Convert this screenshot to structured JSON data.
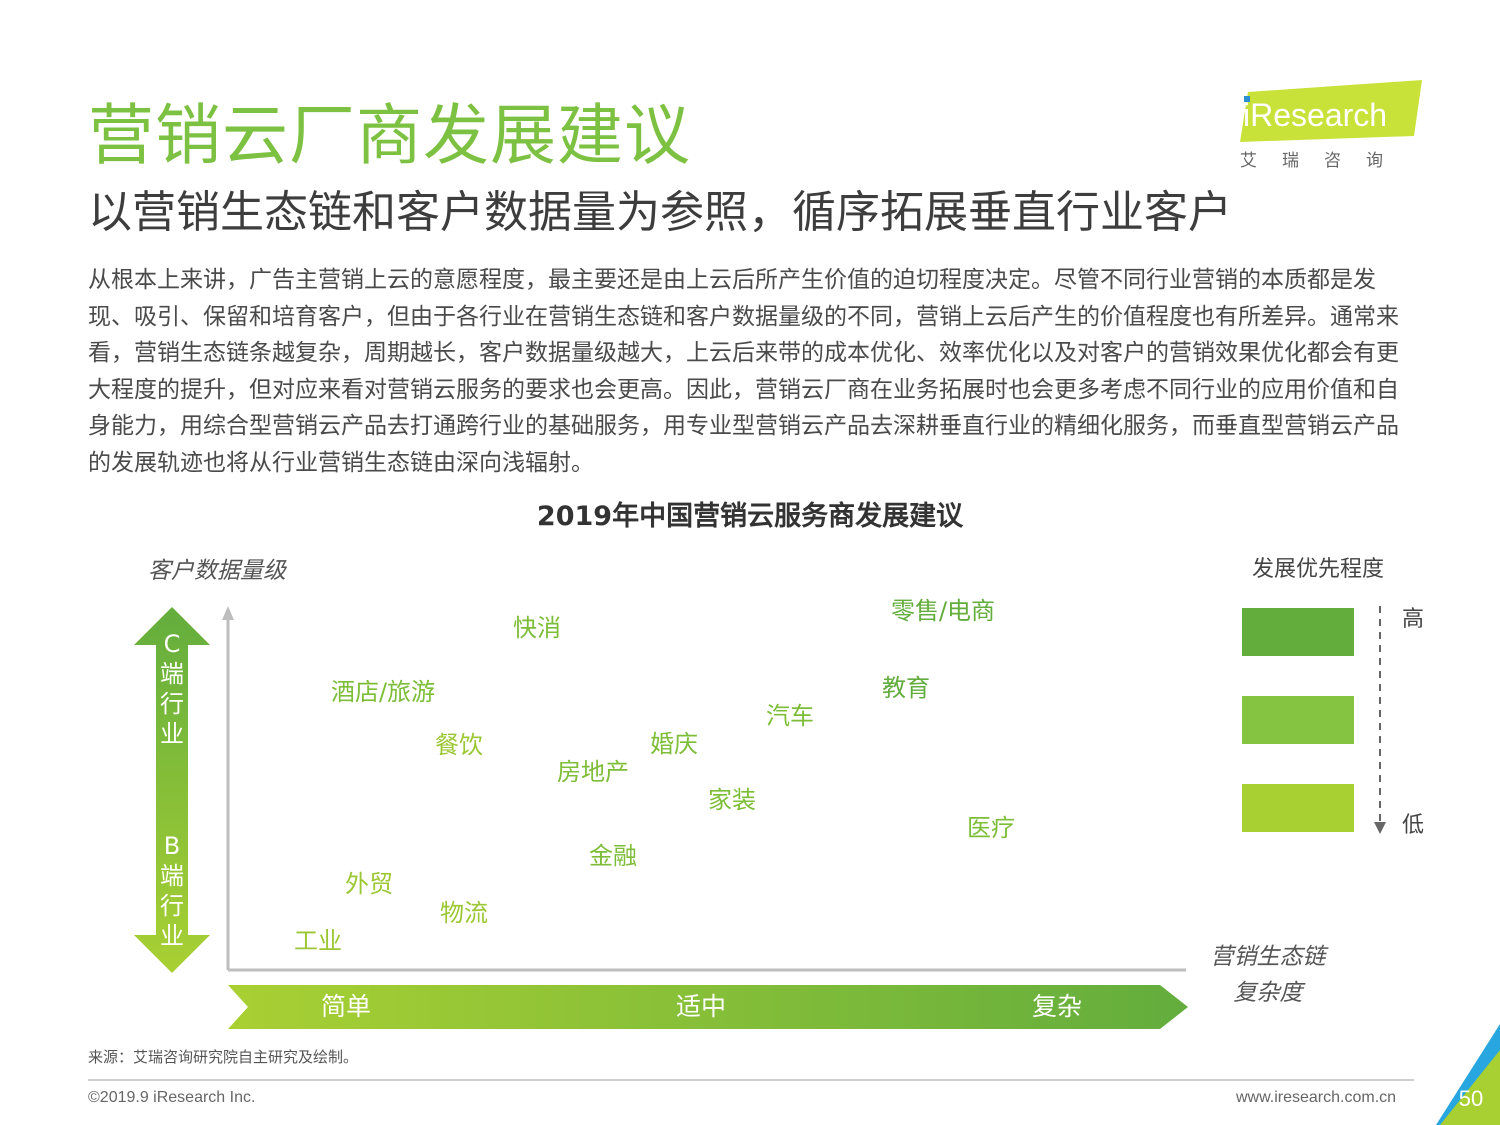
{
  "header": {
    "title": "营销云厂商发展建议",
    "subtitle": "以营销生态链和客户数据量为参照，循序拓展垂直行业客户",
    "logo_text": "iResearch",
    "logo_cn": "艾瑞咨询"
  },
  "body_text": "从根本上来讲，广告主营销上云的意愿程度，最主要还是由上云后所产生价值的迫切程度决定。尽管不同行业营销的本质都是发现、吸引、保留和培育客户，但由于各行业在营销生态链和客户数据量级的不同，营销上云后产生的价值程度也有所差异。通常来看，营销生态链条越复杂，周期越长，客户数据量级越大，上云后来带的成本优化、效率优化以及对客户的营销效果优化都会有更大程度的提升，但对应来看对营销云服务的要求也会更高。因此，营销云厂商在业务拓展时也会更多考虑不同行业的应用价值和自身能力，用综合型营销云产品去打通跨行业的基础服务，用专业型营销云产品去深耕垂直行业的精细化服务，而垂直型营销云产品的发展轨迹也将从行业营销生态链由深向浅辐射。",
  "chart": {
    "title": "2019年中国营销云服务商发展建议",
    "y_axis_label": "客户数据量级",
    "x_axis_label_line1": "营销生态链",
    "x_axis_label_line2": "复杂度",
    "y_arrow_top": [
      "C",
      "端",
      "行",
      "业"
    ],
    "y_arrow_bottom": [
      "B",
      "端",
      "行",
      "业"
    ],
    "x_levels": [
      "简单",
      "适中",
      "复杂"
    ],
    "legend_title": "发展优先程度",
    "legend_high": "高",
    "legend_low": "低",
    "legend_colors": [
      "#63ad3d",
      "#84c441",
      "#a9d033"
    ],
    "industries": [
      {
        "name": "零售/电商",
        "priority": "high"
      },
      {
        "name": "快消",
        "priority": "medium"
      },
      {
        "name": "教育",
        "priority": "high"
      },
      {
        "name": "酒店/旅游",
        "priority": "medium"
      },
      {
        "name": "汽车",
        "priority": "medium"
      },
      {
        "name": "餐饮",
        "priority": "low"
      },
      {
        "name": "婚庆",
        "priority": "medium"
      },
      {
        "name": "房地产",
        "priority": "medium"
      },
      {
        "name": "家装",
        "priority": "medium"
      },
      {
        "name": "医疗",
        "priority": "medium"
      },
      {
        "name": "金融",
        "priority": "medium"
      },
      {
        "name": "外贸",
        "priority": "low"
      },
      {
        "name": "物流",
        "priority": "low"
      },
      {
        "name": "工业",
        "priority": "low"
      }
    ]
  },
  "footer": {
    "source": "来源：艾瑞咨询研究院自主研究及绘制。",
    "copyright": "©2019.9 iResearch Inc.",
    "website": "www.iresearch.com.cn",
    "page": "50"
  }
}
